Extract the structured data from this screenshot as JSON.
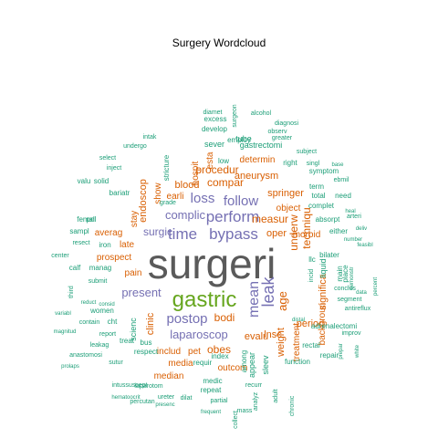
{
  "title": "Surgery  Wordcloud",
  "colors": {
    "gray": "#5a5a5a",
    "green": "#66a61e",
    "purple": "#7570b3",
    "orange": "#d95f02",
    "teal": "#1b9e77"
  },
  "words": [
    {
      "text": "surgeri",
      "color": "gray"
    },
    {
      "text": "gastric",
      "color": "green"
    },
    {
      "text": "bypass",
      "color": "purple"
    },
    {
      "text": "time",
      "color": "purple"
    },
    {
      "text": "perform",
      "color": "purple"
    },
    {
      "text": "follow",
      "color": "purple"
    },
    {
      "text": "loss",
      "color": "purple"
    },
    {
      "text": "postop",
      "color": "purple"
    },
    {
      "text": "mean",
      "color": "purple"
    },
    {
      "text": "leak",
      "color": "purple"
    },
    {
      "text": "laparoscop",
      "color": "purple"
    },
    {
      "text": "complic",
      "color": "purple"
    },
    {
      "text": "present",
      "color": "purple"
    },
    {
      "text": "surgic",
      "color": "purple"
    },
    {
      "text": "age",
      "color": "orange"
    },
    {
      "text": "underw",
      "color": "orange"
    },
    {
      "text": "techniqu",
      "color": "orange"
    },
    {
      "text": "measur",
      "color": "orange"
    },
    {
      "text": "obes",
      "color": "orange"
    },
    {
      "text": "bodi",
      "color": "orange"
    },
    {
      "text": "evalu",
      "color": "orange"
    },
    {
      "text": "procedur",
      "color": "orange"
    },
    {
      "text": "compar",
      "color": "orange"
    },
    {
      "text": "blood",
      "color": "orange"
    },
    {
      "text": "endoscop",
      "color": "orange"
    },
    {
      "text": "clinic",
      "color": "orange"
    },
    {
      "text": "significa",
      "color": "orange"
    },
    {
      "text": "weight",
      "color": "orange"
    },
    {
      "text": "lnsc",
      "color": "orange"
    },
    {
      "text": "treatment",
      "color": "orange"
    },
    {
      "text": "oper",
      "color": "orange"
    },
    {
      "text": "object",
      "color": "orange"
    },
    {
      "text": "springer",
      "color": "orange"
    },
    {
      "text": "aneurysm",
      "color": "orange"
    },
    {
      "text": "determin",
      "color": "orange"
    },
    {
      "text": "earli",
      "color": "orange"
    },
    {
      "text": "show",
      "color": "orange"
    },
    {
      "text": "stay",
      "color": "orange"
    },
    {
      "text": "late",
      "color": "orange"
    },
    {
      "text": "averag",
      "color": "orange"
    },
    {
      "text": "prospect",
      "color": "orange"
    },
    {
      "text": "pain",
      "color": "orange"
    },
    {
      "text": "period",
      "color": "orange"
    },
    {
      "text": "backgroun",
      "color": "orange"
    },
    {
      "text": "morbid",
      "color": "orange"
    },
    {
      "text": "media",
      "color": "orange"
    },
    {
      "text": "median",
      "color": "orange"
    },
    {
      "text": "outcom",
      "color": "orange"
    },
    {
      "text": "includ",
      "color": "orange"
    },
    {
      "text": "pet",
      "color": "orange"
    },
    {
      "text": "hospit",
      "color": "orange"
    },
    {
      "text": "esta",
      "color": "orange"
    },
    {
      "text": "scienc",
      "color": "teal"
    },
    {
      "text": "sleev",
      "color": "teal"
    },
    {
      "text": "appear",
      "color": "teal"
    },
    {
      "text": "liquid",
      "color": "teal"
    },
    {
      "text": "symptom",
      "color": "teal"
    },
    {
      "text": "gastrectomi",
      "color": "teal"
    },
    {
      "text": "tube",
      "color": "teal"
    },
    {
      "text": "sever",
      "color": "teal"
    },
    {
      "text": "employ",
      "color": "teal"
    },
    {
      "text": "develop",
      "color": "teal"
    },
    {
      "text": "excess",
      "color": "teal"
    },
    {
      "text": "diamet",
      "color": "teal"
    },
    {
      "text": "alcohol",
      "color": "teal"
    },
    {
      "text": "surgeon",
      "color": "teal"
    },
    {
      "text": "observ",
      "color": "teal"
    },
    {
      "text": "diagnosi",
      "color": "teal"
    },
    {
      "text": "greater",
      "color": "teal"
    },
    {
      "text": "subject",
      "color": "teal"
    },
    {
      "text": "low",
      "color": "teal"
    },
    {
      "text": "right",
      "color": "teal"
    },
    {
      "text": "singl",
      "color": "teal"
    },
    {
      "text": "term",
      "color": "teal"
    },
    {
      "text": "total",
      "color": "teal"
    },
    {
      "text": "need",
      "color": "teal"
    },
    {
      "text": "complet",
      "color": "teal"
    },
    {
      "text": "absorpt",
      "color": "teal"
    },
    {
      "text": "either",
      "color": "teal"
    },
    {
      "text": "bilater",
      "color": "teal"
    },
    {
      "text": "llc",
      "color": "teal"
    },
    {
      "text": "incid",
      "color": "teal"
    },
    {
      "text": "main",
      "color": "teal"
    },
    {
      "text": "place",
      "color": "teal"
    },
    {
      "text": "adrenalectomi",
      "color": "teal"
    },
    {
      "text": "improv",
      "color": "teal"
    },
    {
      "text": "rectal",
      "color": "teal"
    },
    {
      "text": "repair",
      "color": "teal"
    },
    {
      "text": "function",
      "color": "teal"
    },
    {
      "text": "among",
      "color": "teal"
    },
    {
      "text": "index",
      "color": "teal"
    },
    {
      "text": "medic",
      "color": "teal"
    },
    {
      "text": "repeat",
      "color": "teal"
    },
    {
      "text": "partial",
      "color": "teal"
    },
    {
      "text": "frequent",
      "color": "teal"
    },
    {
      "text": "percutan",
      "color": "teal"
    },
    {
      "text": "intussuscept",
      "color": "teal"
    },
    {
      "text": "laparotom",
      "color": "teal"
    },
    {
      "text": "ureter",
      "color": "teal"
    },
    {
      "text": "dilat",
      "color": "teal"
    },
    {
      "text": "hematoocrit",
      "color": "teal"
    },
    {
      "text": "presenc",
      "color": "teal"
    },
    {
      "text": "treat",
      "color": "teal"
    },
    {
      "text": "bus",
      "color": "teal"
    },
    {
      "text": "respect",
      "color": "teal"
    },
    {
      "text": "requir",
      "color": "teal"
    },
    {
      "text": "women",
      "color": "teal"
    },
    {
      "text": "cht",
      "color": "teal"
    },
    {
      "text": "contain",
      "color": "teal"
    },
    {
      "text": "report",
      "color": "teal"
    },
    {
      "text": "leakag",
      "color": "teal"
    },
    {
      "text": "anastomosi",
      "color": "teal"
    },
    {
      "text": "prolaps",
      "color": "teal"
    },
    {
      "text": "sutur",
      "color": "teal"
    },
    {
      "text": "manag",
      "color": "teal"
    },
    {
      "text": "calf",
      "color": "teal"
    },
    {
      "text": "center",
      "color": "teal"
    },
    {
      "text": "resect",
      "color": "teal"
    },
    {
      "text": "sampl",
      "color": "teal"
    },
    {
      "text": "femal",
      "color": "teal"
    },
    {
      "text": "pnl",
      "color": "teal"
    },
    {
      "text": "iron",
      "color": "teal"
    },
    {
      "text": "bariatr",
      "color": "teal"
    },
    {
      "text": "solid",
      "color": "teal"
    },
    {
      "text": "valu",
      "color": "teal"
    },
    {
      "text": "inject",
      "color": "teal"
    },
    {
      "text": "select",
      "color": "teal"
    },
    {
      "text": "undergo",
      "color": "teal"
    },
    {
      "text": "intak",
      "color": "teal"
    },
    {
      "text": "stricture",
      "color": "teal"
    },
    {
      "text": "grade",
      "color": "teal"
    },
    {
      "text": "submit",
      "color": "teal"
    },
    {
      "text": "consid",
      "color": "teal"
    },
    {
      "text": "reduct",
      "color": "teal"
    },
    {
      "text": "variabl",
      "color": "teal"
    },
    {
      "text": "magnitud",
      "color": "teal"
    },
    {
      "text": "third",
      "color": "teal"
    },
    {
      "text": "demonstr",
      "color": "teal"
    },
    {
      "text": "conclus",
      "color": "teal"
    },
    {
      "text": "segment",
      "color": "teal"
    },
    {
      "text": "antireflux",
      "color": "teal"
    },
    {
      "text": "data",
      "color": "teal"
    },
    {
      "text": "percent",
      "color": "teal"
    },
    {
      "text": "feasibl",
      "color": "teal"
    },
    {
      "text": "ebmil",
      "color": "teal"
    },
    {
      "text": "base",
      "color": "teal"
    },
    {
      "text": "number",
      "color": "teal"
    },
    {
      "text": "heal",
      "color": "teal"
    },
    {
      "text": "arteri",
      "color": "teal"
    },
    {
      "text": "deliv",
      "color": "teal"
    },
    {
      "text": "prepar",
      "color": "teal"
    },
    {
      "text": "white",
      "color": "teal"
    },
    {
      "text": "collect",
      "color": "teal"
    },
    {
      "text": "mass",
      "color": "teal"
    },
    {
      "text": "distal",
      "color": "teal"
    },
    {
      "text": "recurr",
      "color": "teal"
    },
    {
      "text": "analyz",
      "color": "teal"
    },
    {
      "text": "chronic",
      "color": "teal"
    },
    {
      "text": "adult",
      "color": "teal"
    }
  ]
}
